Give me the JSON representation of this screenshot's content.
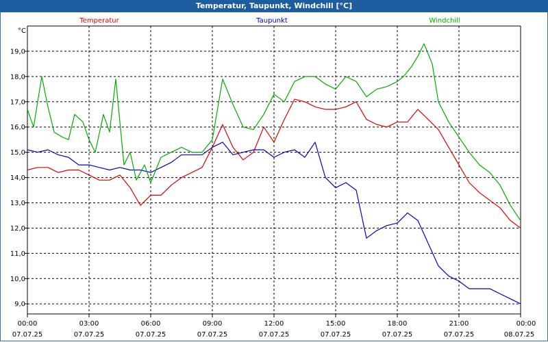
{
  "window": {
    "title": "Temperatur, Taupunkt, Windchill [°C]"
  },
  "chart_data": {
    "type": "line",
    "title": "Temperatur, Taupunkt, Windchill [°C]",
    "ylabel": "°C",
    "ylim": [
      8.6,
      20.0
    ],
    "xlim": [
      0,
      24
    ],
    "grid": true,
    "legend_position": "top",
    "y_ticks": [
      "9,0",
      "10,0",
      "11,0",
      "12,0",
      "13,0",
      "14,0",
      "15,0",
      "16,0",
      "17,0",
      "18,0",
      "19,0"
    ],
    "x_ticks": [
      {
        "time": "00:00",
        "date": "07.07.25"
      },
      {
        "time": "03:00",
        "date": "07.07.25"
      },
      {
        "time": "06:00",
        "date": "07.07.25"
      },
      {
        "time": "09:00",
        "date": "07.07.25"
      },
      {
        "time": "12:00",
        "date": "07.07.25"
      },
      {
        "time": "15:00",
        "date": "07.07.25"
      },
      {
        "time": "18:00",
        "date": "07.07.25"
      },
      {
        "time": "21:00",
        "date": "07.07.25"
      },
      {
        "time": "00:00",
        "date": "08.07.25"
      }
    ],
    "series": [
      {
        "name": "Temperatur",
        "color": "#dd0000",
        "x": [
          0,
          0.5,
          1,
          1.5,
          2,
          2.5,
          3,
          3.5,
          4,
          4.5,
          5,
          5.5,
          6,
          6.5,
          7,
          7.5,
          8,
          8.5,
          9,
          9.5,
          10,
          10.5,
          11,
          11.5,
          12,
          12.5,
          13,
          13.5,
          14,
          14.5,
          15,
          15.5,
          16,
          16.5,
          17,
          17.5,
          18,
          18.5,
          19,
          19.5,
          20,
          20.5,
          21,
          21.5,
          22,
          22.5,
          23,
          23.5,
          24
        ],
        "y": [
          14.3,
          14.4,
          14.4,
          14.2,
          14.3,
          14.3,
          14.1,
          13.9,
          13.9,
          14.1,
          13.6,
          12.9,
          13.3,
          13.3,
          13.7,
          14.0,
          14.2,
          14.4,
          15.2,
          16.1,
          15.2,
          14.7,
          15.0,
          16.0,
          15.4,
          16.3,
          17.1,
          17.0,
          16.8,
          16.7,
          16.7,
          16.8,
          17.0,
          16.3,
          16.1,
          16.0,
          16.2,
          16.2,
          16.7,
          16.3,
          15.9,
          15.2,
          14.5,
          13.8,
          13.4,
          13.1,
          12.8,
          12.3,
          12.0
        ]
      },
      {
        "name": "Taupunkt",
        "color": "#0000cc",
        "x": [
          0,
          0.5,
          1,
          1.5,
          2,
          2.5,
          3,
          3.5,
          4,
          4.5,
          5,
          5.5,
          6,
          6.5,
          7,
          7.5,
          8,
          8.5,
          9,
          9.5,
          10,
          10.5,
          11,
          11.5,
          12,
          12.5,
          13,
          13.5,
          14,
          14.5,
          15,
          15.5,
          16,
          16.5,
          17,
          17.5,
          18,
          18.5,
          19,
          19.5,
          20,
          20.5,
          21,
          21.5,
          22,
          22.5,
          23,
          23.5,
          24
        ],
        "y": [
          15.1,
          15.0,
          15.1,
          14.9,
          14.8,
          14.5,
          14.5,
          14.4,
          14.3,
          14.4,
          14.3,
          14.3,
          14.2,
          14.4,
          14.6,
          14.9,
          14.9,
          14.9,
          15.2,
          15.4,
          14.9,
          15.0,
          15.1,
          15.1,
          14.8,
          15.0,
          15.1,
          14.8,
          15.4,
          14.0,
          13.6,
          13.8,
          13.5,
          11.6,
          11.9,
          12.1,
          12.2,
          12.6,
          12.3,
          11.4,
          10.5,
          10.1,
          9.9,
          9.6,
          9.6,
          9.6,
          9.4,
          9.2,
          9.0
        ]
      },
      {
        "name": "Windchill",
        "color": "#00aa00",
        "x": [
          0,
          0.3,
          0.7,
          1,
          1.3,
          1.7,
          2,
          2.3,
          2.7,
          3,
          3.3,
          3.7,
          4,
          4.3,
          4.7,
          5,
          5.3,
          5.7,
          6,
          6.5,
          7,
          7.5,
          8,
          8.5,
          9,
          9.5,
          10,
          10.5,
          11,
          11.5,
          12,
          12.5,
          13,
          13.5,
          14,
          14.5,
          15,
          15.5,
          16,
          16.5,
          17,
          17.5,
          18,
          18.3,
          18.7,
          19,
          19.3,
          19.7,
          20,
          20.5,
          21,
          21.5,
          22,
          22.5,
          23,
          23.5,
          24
        ],
        "y": [
          16.7,
          16.0,
          18.0,
          16.8,
          15.8,
          15.6,
          15.5,
          16.5,
          16.2,
          15.5,
          15.0,
          16.5,
          15.8,
          17.9,
          14.5,
          15.0,
          13.9,
          14.5,
          13.8,
          14.8,
          15.0,
          15.2,
          15.0,
          15.0,
          15.5,
          17.9,
          16.9,
          16.0,
          15.9,
          16.5,
          17.3,
          17.0,
          17.8,
          18.0,
          18.0,
          17.7,
          17.5,
          18.0,
          17.8,
          17.2,
          17.5,
          17.6,
          17.8,
          18.0,
          18.4,
          18.8,
          19.3,
          18.5,
          17.0,
          16.2,
          15.6,
          15.0,
          14.5,
          14.2,
          13.7,
          12.9,
          12.3
        ]
      }
    ]
  }
}
